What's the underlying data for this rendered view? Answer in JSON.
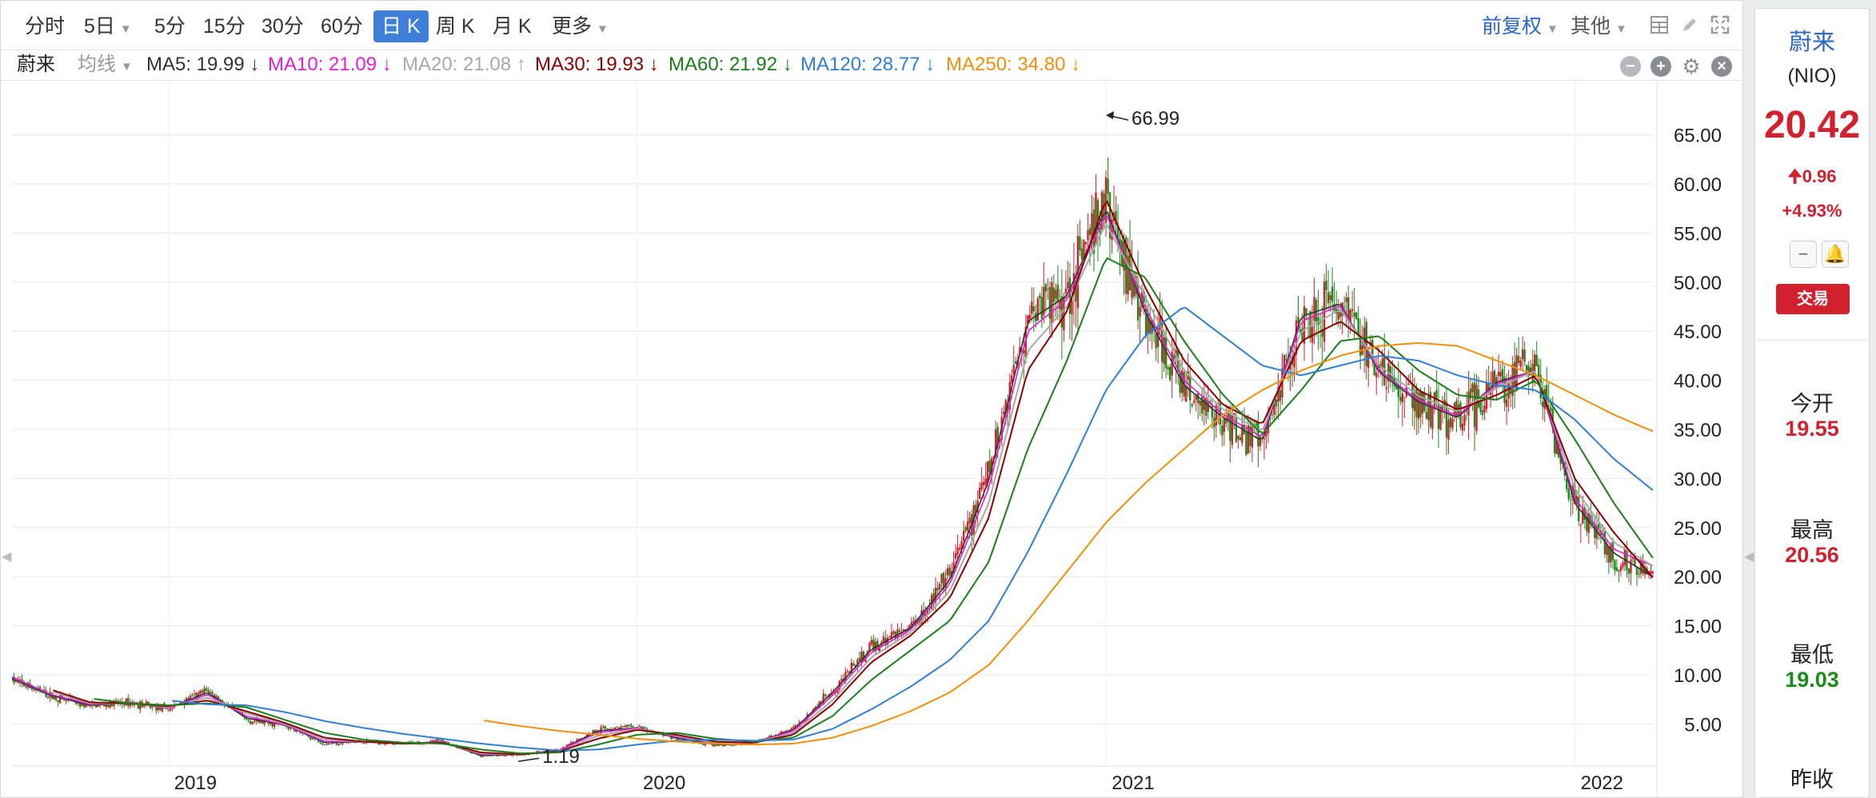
{
  "toolbar": {
    "periods": [
      "分时",
      "5日",
      "5分",
      "15分",
      "30分",
      "60分",
      "日 K",
      "周 K",
      "月 K",
      "更多"
    ],
    "active_period": "日 K",
    "adjust": "前复权",
    "other": "其他"
  },
  "ma_bar": {
    "name": "蔚来",
    "ma_toggle": "均线",
    "items": [
      {
        "label": "MA5: 19.99",
        "arrow": "↓",
        "color": "#333333"
      },
      {
        "label": "MA10: 21.09",
        "arrow": "↓",
        "color": "#e01fd8"
      },
      {
        "label": "MA20: 21.08",
        "arrow": "↑",
        "color": "#a8a8a8"
      },
      {
        "label": "MA30: 19.93",
        "arrow": "↓",
        "color": "#8b0000"
      },
      {
        "label": "MA60: 21.92",
        "arrow": "↓",
        "color": "#1a7f1a"
      },
      {
        "label": "MA120: 28.77",
        "arrow": "↓",
        "color": "#2f7fd6"
      },
      {
        "label": "MA250: 34.80",
        "arrow": "↓",
        "color": "#f0900c"
      }
    ]
  },
  "side": {
    "name": "蔚来",
    "code": "(NIO)",
    "price": "20.42",
    "change": "0.96",
    "pct": "+4.93%",
    "trade": "交易",
    "open_label": "今开",
    "open": "19.55",
    "high_label": "最高",
    "high": "20.56",
    "low_label": "最低",
    "low": "19.03",
    "prev_label": "昨收"
  },
  "colors": {
    "up": "#d3202e",
    "down": "#1a8a1a",
    "accent": "#3d7fd9"
  },
  "chart_data": {
    "type": "candlestick",
    "xlabels": [
      "2019",
      "2020",
      "2021",
      "2022"
    ],
    "yticks": [
      "5.00",
      "10.00",
      "15.00",
      "20.00",
      "25.00",
      "30.00",
      "35.00",
      "40.00",
      "45.00",
      "50.00",
      "55.00",
      "60.00",
      "65.00"
    ],
    "ylim": [
      0.8,
      70.5
    ],
    "xlim": [
      "2018-09",
      "2022-03"
    ],
    "annotations": {
      "high": "66.99",
      "low": "1.19"
    },
    "price_series": {
      "date": [
        "2018-09",
        "2018-10",
        "2018-11",
        "2018-12",
        "2019-01",
        "2019-02",
        "2019-03",
        "2019-04",
        "2019-05",
        "2019-06",
        "2019-07",
        "2019-08",
        "2019-09",
        "2019-10",
        "2019-11",
        "2019-12",
        "2020-01",
        "2020-02",
        "2020-03",
        "2020-04",
        "2020-05",
        "2020-06",
        "2020-07",
        "2020-08",
        "2020-09",
        "2020-10",
        "2020-11",
        "2020-12",
        "2021-01",
        "2021-02",
        "2021-03",
        "2021-04",
        "2021-05",
        "2021-06",
        "2021-07",
        "2021-08",
        "2021-09",
        "2021-10",
        "2021-11",
        "2021-12",
        "2022-01",
        "2022-02",
        "2022-03"
      ],
      "close": [
        9.5,
        7.8,
        6.8,
        7.2,
        6.5,
        8.4,
        5.4,
        4.8,
        3.0,
        3.2,
        3.0,
        3.3,
        1.7,
        1.9,
        2.3,
        4.5,
        4.7,
        3.5,
        2.8,
        3.1,
        4.5,
        8.5,
        12.8,
        15.0,
        20.0,
        30.5,
        47.0,
        49.0,
        58.0,
        46.5,
        39.0,
        36.0,
        33.5,
        47.0,
        48.0,
        40.5,
        37.5,
        36.0,
        40.0,
        41.0,
        27.0,
        22.0,
        20.4
      ]
    },
    "ma_series": [
      {
        "name": "MA5",
        "color": "#333333",
        "values": [
          9.6,
          7.9,
          6.9,
          7.2,
          6.6,
          8.2,
          5.6,
          4.9,
          3.1,
          3.2,
          3.0,
          3.2,
          1.8,
          1.9,
          2.3,
          4.3,
          4.6,
          3.6,
          2.9,
          3.1,
          4.4,
          8.2,
          12.6,
          14.8,
          19.6,
          29.8,
          46.0,
          48.6,
          57.5,
          47.0,
          39.5,
          36.2,
          33.8,
          46.5,
          47.8,
          40.8,
          37.8,
          36.2,
          39.8,
          41.0,
          27.5,
          22.4,
          20.0
        ]
      },
      {
        "name": "MA10",
        "color": "#e01fd8",
        "values": [
          9.8,
          8.0,
          7.0,
          7.2,
          6.6,
          8.0,
          5.8,
          4.9,
          3.2,
          3.2,
          3.0,
          3.2,
          1.9,
          1.9,
          2.3,
          4.1,
          4.6,
          3.7,
          3.0,
          3.1,
          4.3,
          7.9,
          12.3,
          14.6,
          19.2,
          29.0,
          45.0,
          48.2,
          57.0,
          47.5,
          40.0,
          36.5,
          34.2,
          46.0,
          47.6,
          41.0,
          38.0,
          36.4,
          39.6,
          41.0,
          28.0,
          22.8,
          21.1
        ]
      },
      {
        "name": "MA20",
        "color": "#a8a8a8",
        "values": [
          null,
          8.3,
          7.1,
          7.1,
          6.7,
          7.7,
          6.1,
          5.0,
          3.4,
          3.2,
          3.0,
          3.1,
          2.0,
          1.9,
          2.2,
          3.8,
          4.5,
          3.8,
          3.1,
          3.1,
          4.1,
          7.4,
          11.8,
          14.3,
          18.5,
          27.5,
          43.0,
          47.5,
          56.0,
          48.5,
          41.0,
          37.0,
          34.8,
          45.0,
          47.2,
          41.5,
          38.4,
          36.8,
          39.2,
          41.0,
          29.0,
          23.5,
          21.1
        ]
      },
      {
        "name": "MA30",
        "color": "#8b0000",
        "values": [
          null,
          8.5,
          7.2,
          7.1,
          6.8,
          7.4,
          6.3,
          5.1,
          3.6,
          3.2,
          3.0,
          3.1,
          2.1,
          1.9,
          2.2,
          3.5,
          4.4,
          3.9,
          3.2,
          3.1,
          3.9,
          7.0,
          11.3,
          14.0,
          17.8,
          26.0,
          41.0,
          47.0,
          58.5,
          49.5,
          42.0,
          37.5,
          35.5,
          44.0,
          46.0,
          43.0,
          39.0,
          37.0,
          38.5,
          40.5,
          30.0,
          24.5,
          19.9
        ]
      },
      {
        "name": "MA60",
        "color": "#1a7f1a",
        "values": [
          null,
          null,
          7.6,
          7.1,
          6.9,
          7.1,
          6.7,
          5.4,
          4.1,
          3.4,
          3.1,
          3.0,
          2.4,
          2.0,
          2.1,
          2.9,
          3.9,
          4.1,
          3.5,
          3.2,
          3.6,
          5.8,
          9.5,
          12.5,
          15.5,
          21.5,
          33.0,
          42.0,
          52.5,
          50.5,
          44.0,
          38.5,
          34.5,
          39.0,
          44.0,
          44.5,
          41.0,
          38.5,
          38.0,
          40.0,
          34.0,
          27.5,
          21.9
        ]
      },
      {
        "name": "MA120",
        "color": "#2f7fd6",
        "values": [
          null,
          null,
          null,
          null,
          7.4,
          7.0,
          6.9,
          6.2,
          5.3,
          4.6,
          4.0,
          3.5,
          3.0,
          2.6,
          2.3,
          2.4,
          2.9,
          3.3,
          3.4,
          3.3,
          3.4,
          4.5,
          6.5,
          8.8,
          11.5,
          15.5,
          22.5,
          30.5,
          39.0,
          44.5,
          47.5,
          44.5,
          41.5,
          40.5,
          41.5,
          42.5,
          42.0,
          40.5,
          39.5,
          39.0,
          36.0,
          32.0,
          28.8
        ]
      },
      {
        "name": "MA250",
        "color": "#f0900c",
        "values": [
          null,
          null,
          null,
          null,
          null,
          null,
          null,
          null,
          null,
          null,
          null,
          null,
          5.4,
          4.8,
          4.3,
          3.9,
          3.5,
          3.2,
          3.0,
          2.9,
          3.0,
          3.6,
          4.8,
          6.3,
          8.2,
          11.0,
          15.5,
          20.5,
          25.5,
          29.5,
          33.0,
          36.5,
          39.0,
          41.0,
          42.5,
          43.5,
          43.8,
          43.5,
          42.0,
          40.5,
          38.5,
          36.5,
          34.8
        ]
      }
    ]
  }
}
